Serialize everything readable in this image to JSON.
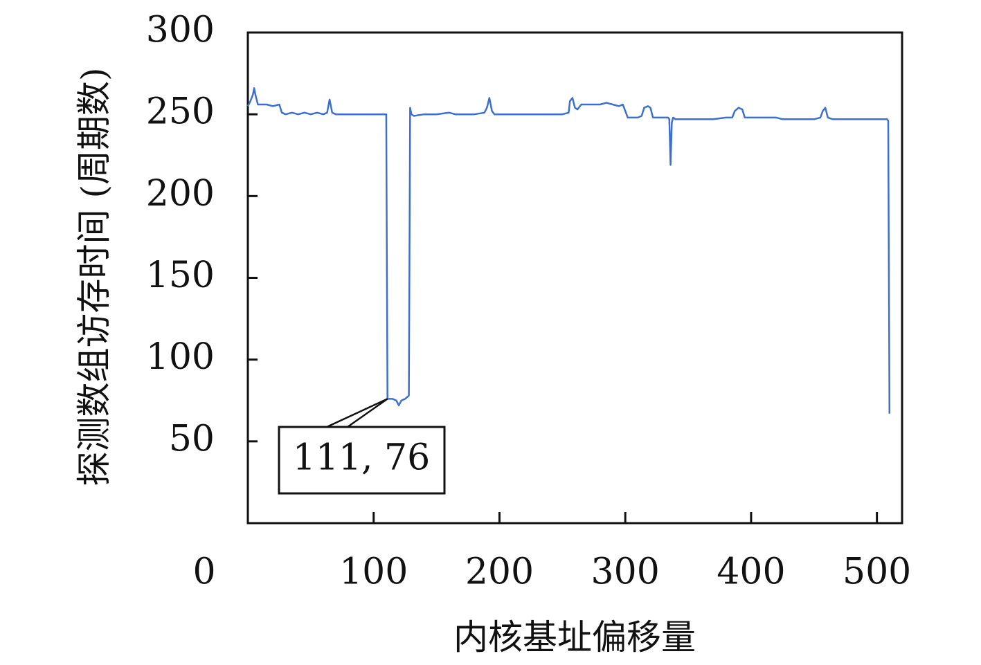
{
  "chart_data": {
    "type": "line",
    "xlabel": "内核基址偏移量",
    "ylabel": "探测数组访存时间 (周期数)",
    "color": "#3c6fd0",
    "xlim": [
      0,
      520
    ],
    "ylim": [
      0,
      300
    ],
    "xticks": [
      0,
      100,
      200,
      300,
      400,
      500
    ],
    "yticks": [
      50,
      100,
      150,
      200,
      250,
      300
    ],
    "annotation": {
      "text": "111, 76",
      "x": 111,
      "y": 76
    },
    "x": [
      0,
      2,
      4,
      5,
      6,
      8,
      10,
      15,
      20,
      25,
      27,
      30,
      35,
      40,
      45,
      50,
      55,
      60,
      63,
      65,
      67,
      70,
      80,
      90,
      100,
      108,
      110,
      111,
      115,
      118,
      120,
      122,
      125,
      128,
      129,
      130,
      132,
      140,
      150,
      160,
      165,
      170,
      180,
      188,
      190,
      192,
      194,
      196,
      200,
      210,
      220,
      230,
      240,
      250,
      255,
      256,
      258,
      260,
      262,
      265,
      270,
      275,
      280,
      285,
      290,
      295,
      298,
      300,
      302,
      305,
      310,
      313,
      315,
      318,
      320,
      322,
      325,
      330,
      334,
      335,
      336,
      337,
      338,
      340,
      350,
      360,
      370,
      380,
      385,
      387,
      390,
      393,
      395,
      400,
      410,
      420,
      425,
      430,
      440,
      450,
      455,
      457,
      459,
      461,
      465,
      470,
      480,
      490,
      500,
      505,
      508,
      509,
      510
    ],
    "values": [
      255,
      258,
      262,
      266,
      262,
      256,
      256,
      256,
      255,
      256,
      251,
      250,
      251,
      250,
      251,
      250,
      251,
      250,
      251,
      259,
      251,
      250,
      250,
      250,
      250,
      250,
      250,
      76,
      76,
      75,
      72,
      75,
      76,
      78,
      254,
      250,
      249,
      250,
      250,
      251,
      250,
      250,
      250,
      251,
      254,
      260,
      252,
      250,
      250,
      250,
      250,
      250,
      250,
      250,
      251,
      258,
      260,
      254,
      253,
      256,
      256,
      256,
      256,
      257,
      256,
      255,
      256,
      252,
      248,
      248,
      248,
      249,
      254,
      255,
      254,
      248,
      248,
      248,
      248,
      247,
      219,
      245,
      248,
      247,
      247,
      247,
      247,
      248,
      248,
      252,
      254,
      253,
      248,
      248,
      248,
      248,
      247,
      247,
      247,
      247,
      248,
      252,
      254,
      248,
      247,
      247,
      247,
      247,
      247,
      247,
      247,
      246,
      67
    ]
  }
}
